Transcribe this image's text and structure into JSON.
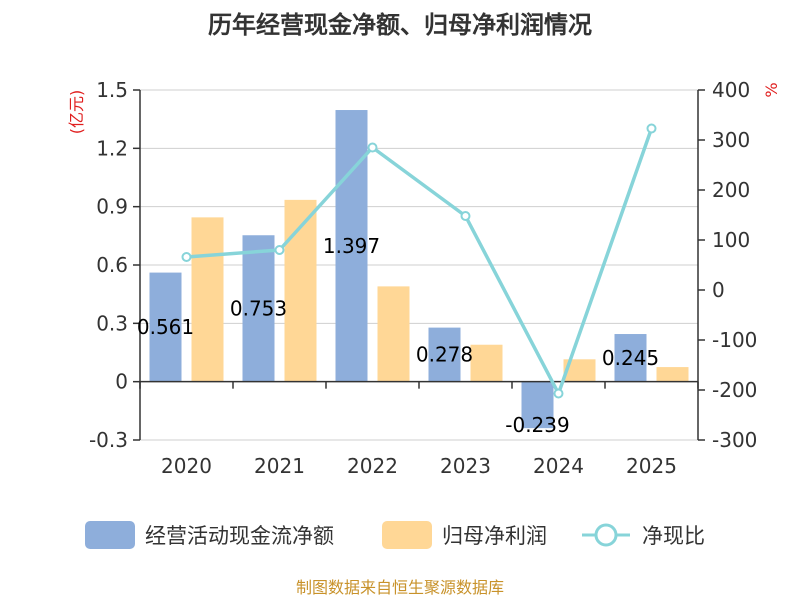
{
  "chart_data": {
    "type": "bar",
    "title": "历年经营现金净额、归母净利润情况",
    "categories": [
      "2020",
      "2021",
      "2022",
      "2023",
      "2024",
      "2025"
    ],
    "left_axis": {
      "unit": "(亿元)",
      "ylim": [
        -0.3,
        1.5
      ],
      "ticks": [
        "1.5",
        "1.2",
        "0.9",
        "0.6",
        "0.3",
        "0",
        "-0.3"
      ],
      "tick_values": [
        1.5,
        1.2,
        0.9,
        0.6,
        0.3,
        0,
        -0.3
      ]
    },
    "right_axis": {
      "unit": "%",
      "ylim": [
        -300,
        400
      ],
      "ticks": [
        "400",
        "300",
        "200",
        "100",
        "0",
        "-100",
        "-200",
        "-300"
      ],
      "tick_values": [
        400,
        300,
        200,
        100,
        0,
        -100,
        -200,
        -300
      ]
    },
    "series": [
      {
        "name": "经营活动现金流净额",
        "type": "bar",
        "axis": "left",
        "color": "#8eaedb",
        "values": [
          0.561,
          0.753,
          1.397,
          0.278,
          -0.239,
          0.245
        ],
        "labels": [
          "0.561",
          "0.753",
          "1.397",
          "0.278",
          "-0.239",
          "0.245"
        ]
      },
      {
        "name": "归母净利润",
        "type": "bar",
        "axis": "left",
        "color": "#ffd796",
        "values": [
          0.845,
          0.935,
          0.49,
          0.19,
          0.115,
          0.075
        ]
      },
      {
        "name": "净现比",
        "type": "line",
        "axis": "right",
        "color": "#87d4d9",
        "values": [
          66,
          80,
          285,
          148,
          -207,
          323
        ]
      }
    ],
    "grid": true,
    "legend_position": "bottom"
  },
  "footer": {
    "source": "制图数据来自恒生聚源数据库"
  }
}
